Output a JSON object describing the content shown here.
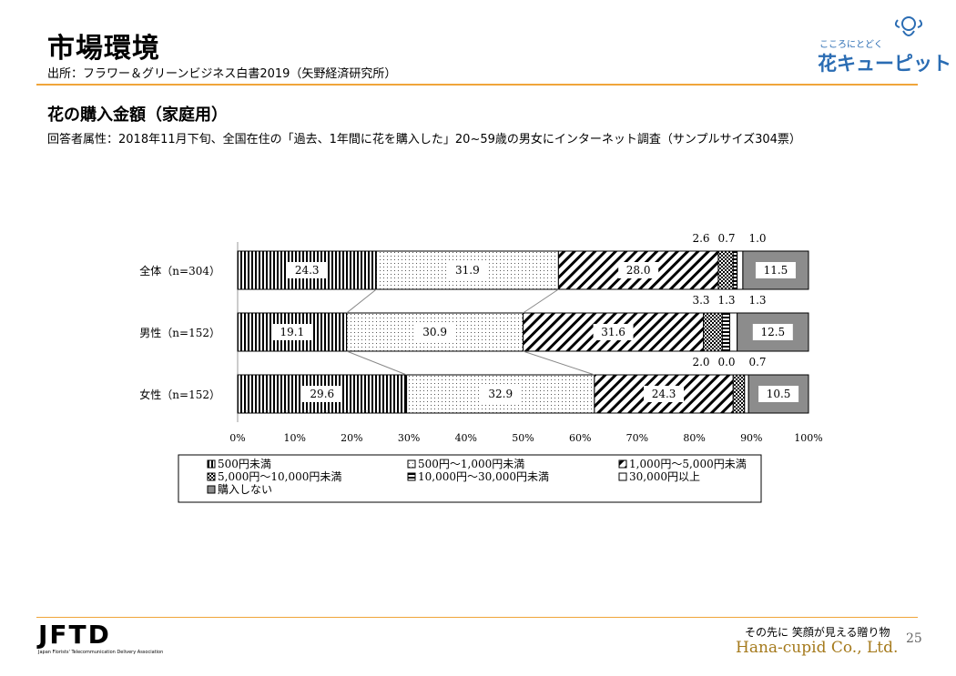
{
  "header": {
    "title": "市場環境",
    "source": "出所：フラワー＆グリーンビジネス白書2019（矢野経済研究所）",
    "subtitle": "花の購入金額（家庭用）",
    "survey": "回答者属性：2018年11月下旬、全国在住の「過去、1年間に花を購入した」20~59歳の男女にインターネット調査（サンプルサイズ304票）"
  },
  "logo": {
    "tagline": "こころにとどく",
    "name": "花キューピット",
    "icon": "cupid-icon"
  },
  "footer": {
    "org_mark": "JFTD",
    "org_name": "Japan Florists' Telecommunication Delivery Association",
    "slogan": "その先に 笑顔が見える贈り物",
    "company": "Hana-cupid Co., Ltd.",
    "page": "25"
  },
  "colors": {
    "accent_rule": "#f0a53a",
    "logo_blue": "#2a6cb3",
    "company_gold": "#a57a1c",
    "no_purchase_gray": "#8c8c8c"
  },
  "chart_data": {
    "type": "bar",
    "orientation": "horizontal-stacked-100",
    "categories": [
      "全体（n=304）",
      "男性（n=152）",
      "女性（n=152）"
    ],
    "series": [
      {
        "name": "500円未満",
        "values": [
          24.3,
          19.1,
          29.6
        ],
        "pattern": "vertical-stripes"
      },
      {
        "name": "500円～1,000円未満",
        "values": [
          31.9,
          30.9,
          32.9
        ],
        "pattern": "dots"
      },
      {
        "name": "1,000円～5,000円未満",
        "values": [
          28.0,
          31.6,
          24.3
        ],
        "pattern": "diagonal"
      },
      {
        "name": "5,000円～10,000円未満",
        "values": [
          2.6,
          3.3,
          2.0
        ],
        "pattern": "crosshatch"
      },
      {
        "name": "10,000円～30,000円未満",
        "values": [
          0.7,
          1.3,
          0.0
        ],
        "pattern": "horizontal-stripes"
      },
      {
        "name": "30,000円以上",
        "values": [
          1.0,
          1.3,
          0.7
        ],
        "pattern": "white"
      },
      {
        "name": "購入しない",
        "values": [
          11.5,
          12.5,
          10.5
        ],
        "pattern": "gray"
      }
    ],
    "data_labels": [
      [
        "24.3",
        "31.9",
        "28.0",
        "2.6",
        "0.7",
        "1.0",
        "11.5"
      ],
      [
        "19.1",
        "30.9",
        "31.6",
        "3.3",
        "1.3",
        "1.3",
        "12.5"
      ],
      [
        "29.6",
        "32.9",
        "24.3",
        "2.0",
        "0.0",
        "0.7",
        "10.5"
      ]
    ],
    "x_ticks": [
      "0%",
      "10%",
      "20%",
      "30%",
      "40%",
      "50%",
      "60%",
      "70%",
      "80%",
      "90%",
      "100%"
    ],
    "xlim": [
      0,
      100
    ],
    "grid": false,
    "legend_position": "bottom"
  }
}
